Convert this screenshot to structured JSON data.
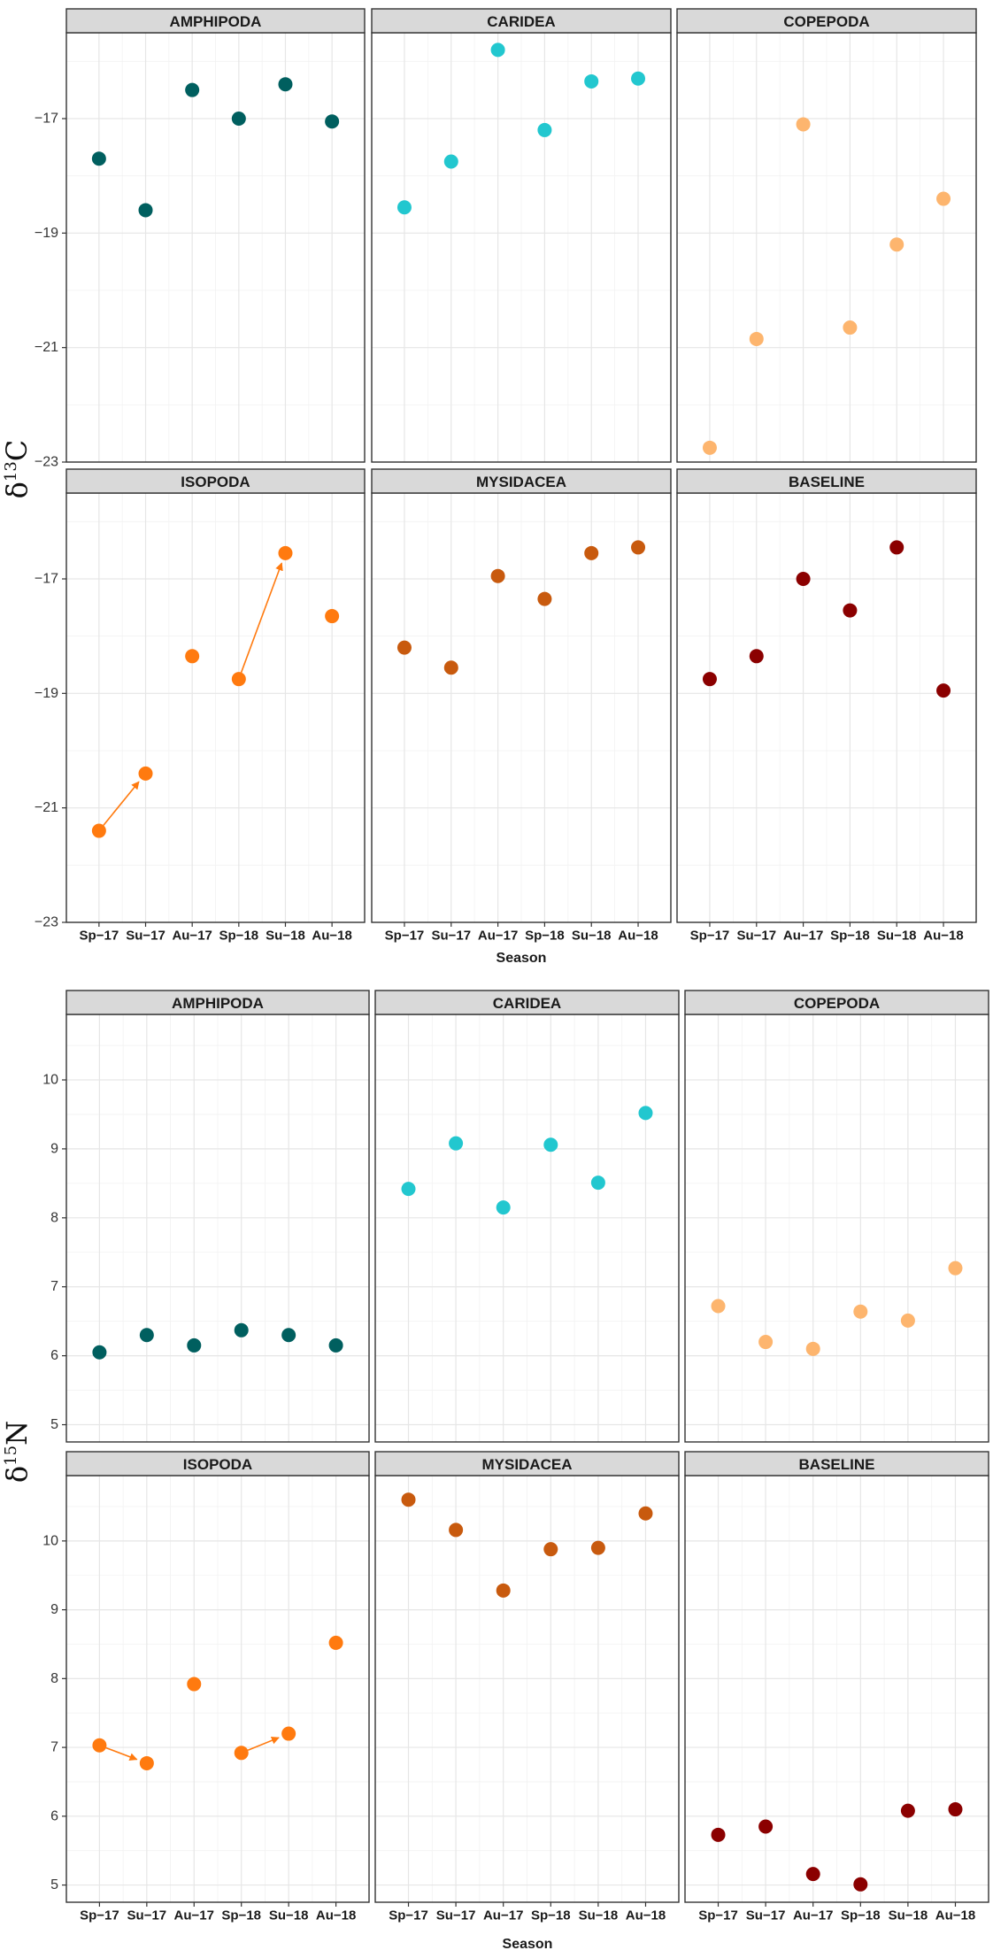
{
  "chart_data": [
    {
      "type": "scatter",
      "ylabel": {
        "delta": "δ",
        "mass": "13",
        "element": "C"
      },
      "xlabel": "Season",
      "ylim": [
        -23,
        -15.5
      ],
      "yticks": [
        -23,
        -21,
        -19,
        -17
      ],
      "categories": [
        "Sp−17",
        "Su−17",
        "Au−17",
        "Sp−18",
        "Su−18",
        "Au−18"
      ],
      "panels": [
        {
          "name": "AMPHIPODA",
          "color": "#005f5f",
          "values": [
            -17.7,
            -18.6,
            -16.5,
            -17.0,
            -16.4,
            -17.05
          ],
          "arrows": []
        },
        {
          "name": "CARIDEA",
          "color": "#22c7cf",
          "values": [
            -18.55,
            -17.75,
            -15.8,
            -17.2,
            -16.35,
            -16.3
          ],
          "arrows": []
        },
        {
          "name": "COPEPODA",
          "color": "#fdb56e",
          "values": [
            -22.75,
            -20.85,
            -17.1,
            -20.65,
            -19.2,
            -18.4
          ],
          "arrows": []
        },
        {
          "name": "ISOPODA",
          "color": "#ff7a0f",
          "values": [
            -21.4,
            -20.4,
            -18.35,
            -18.75,
            -16.55,
            -17.65
          ],
          "arrows": [
            [
              0,
              1
            ],
            [
              3,
              4
            ]
          ]
        },
        {
          "name": "MYSIDACEA",
          "color": "#c85a0e",
          "values": [
            -18.2,
            -18.55,
            -16.95,
            -17.35,
            -16.55,
            -16.45
          ],
          "arrows": []
        },
        {
          "name": "BASELINE",
          "color": "#8b0000",
          "values": [
            -18.75,
            -18.35,
            -17.0,
            -17.55,
            -16.45,
            -18.95
          ],
          "arrows": []
        }
      ]
    },
    {
      "type": "scatter",
      "ylabel": {
        "delta": "δ",
        "mass": "15",
        "element": "N"
      },
      "xlabel": "Season",
      "ylim": [
        4.75,
        10.95
      ],
      "yticks": [
        5,
        6,
        7,
        8,
        9,
        10
      ],
      "categories": [
        "Sp−17",
        "Su−17",
        "Au−17",
        "Sp−18",
        "Su−18",
        "Au−18"
      ],
      "panels": [
        {
          "name": "AMPHIPODA",
          "color": "#005f5f",
          "values": [
            6.05,
            6.3,
            6.15,
            6.37,
            6.3,
            6.15
          ],
          "arrows": []
        },
        {
          "name": "CARIDEA",
          "color": "#22c7cf",
          "values": [
            8.42,
            9.08,
            8.15,
            9.06,
            8.51,
            9.52
          ],
          "arrows": []
        },
        {
          "name": "COPEPODA",
          "color": "#fdb56e",
          "values": [
            6.72,
            6.2,
            6.1,
            6.64,
            6.51,
            7.27
          ],
          "arrows": []
        },
        {
          "name": "ISOPODA",
          "color": "#ff7a0f",
          "values": [
            7.03,
            6.77,
            7.92,
            6.92,
            7.2,
            8.52
          ],
          "arrows": [
            [
              0,
              1
            ],
            [
              3,
              4
            ]
          ]
        },
        {
          "name": "MYSIDACEA",
          "color": "#c85a0e",
          "values": [
            10.6,
            10.16,
            9.28,
            9.88,
            9.9,
            10.4
          ],
          "arrows": []
        },
        {
          "name": "BASELINE",
          "color": "#8b0000",
          "values": [
            5.73,
            5.85,
            5.16,
            5.01,
            6.08,
            6.1
          ],
          "arrows": []
        }
      ]
    }
  ]
}
